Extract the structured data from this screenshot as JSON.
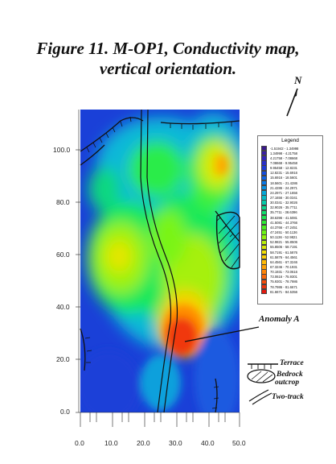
{
  "title_line1": "Figure 11. M-OP1, Conductivity map,",
  "title_line2": "vertical orientation.",
  "north_label": "N",
  "y_ticks": [
    "100.0",
    "80.0",
    "60.0",
    "40.0",
    "20.0",
    "0.0"
  ],
  "x_ticks": [
    "0.0",
    "10.0",
    "20.0",
    "30.0",
    "40.0",
    "50.0"
  ],
  "annotation": "Anomaly A",
  "legend": {
    "title": "Legend",
    "entries": [
      {
        "label": "-1.51942 - 1.34998",
        "color": "#3a1a8c"
      },
      {
        "label": "1.34998 - 4.21758",
        "color": "#3b1fa2"
      },
      {
        "label": "4.21758 - 7.08668",
        "color": "#3526b8"
      },
      {
        "label": "7.08668 - 9.95458",
        "color": "#2a2fc9"
      },
      {
        "label": "9.95458 - 12.8231",
        "color": "#1f3cd6"
      },
      {
        "label": "12.8231 - 15.6916",
        "color": "#164ee0"
      },
      {
        "label": "15.6916 - 18.5601",
        "color": "#0f63e6"
      },
      {
        "label": "18.5601 - 21.4286",
        "color": "#0a7ae8"
      },
      {
        "label": "21.4286 - 24.2971",
        "color": "#0792e4"
      },
      {
        "label": "24.2971 - 27.1656",
        "color": "#05a8d8"
      },
      {
        "label": "27.1656 - 30.0341",
        "color": "#04bcc4"
      },
      {
        "label": "30.0341 - 32.9026",
        "color": "#05ccaa"
      },
      {
        "label": "32.9026 - 35.7711",
        "color": "#08d88c"
      },
      {
        "label": "35.7711 - 38.6396",
        "color": "#0ee06c"
      },
      {
        "label": "38.6396 - 41.5081",
        "color": "#18e64e"
      },
      {
        "label": "41.5081 - 44.3766",
        "color": "#2aec34"
      },
      {
        "label": "44.3766 - 47.2451",
        "color": "#48f020"
      },
      {
        "label": "47.2451 - 50.1136",
        "color": "#6cf414"
      },
      {
        "label": "50.1136 - 52.9821",
        "color": "#92f40c"
      },
      {
        "label": "52.9821 - 55.8506",
        "color": "#b8f008"
      },
      {
        "label": "55.8506 - 58.7191",
        "color": "#daea06"
      },
      {
        "label": "58.7191 - 61.5876",
        "color": "#f2e004"
      },
      {
        "label": "61.5876 - 64.4561",
        "color": "#fcd004"
      },
      {
        "label": "64.4561 - 67.3246",
        "color": "#ffba04"
      },
      {
        "label": "67.3246 - 70.1931",
        "color": "#ffa004"
      },
      {
        "label": "70.1931 - 73.0616",
        "color": "#ff8406"
      },
      {
        "label": "73.0616 - 75.9301",
        "color": "#fb6808"
      },
      {
        "label": "75.9301 - 78.7986",
        "color": "#f44c0a"
      },
      {
        "label": "78.7986 - 81.6671",
        "color": "#ec320c"
      },
      {
        "label": "81.6671 - 84.5356",
        "color": "#e4180e"
      }
    ]
  },
  "map_key": {
    "terrace": "Terrace",
    "bedrock_line1": "Bedrock",
    "bedrock_line2": "outcrop",
    "two_track": "Two-track"
  }
}
